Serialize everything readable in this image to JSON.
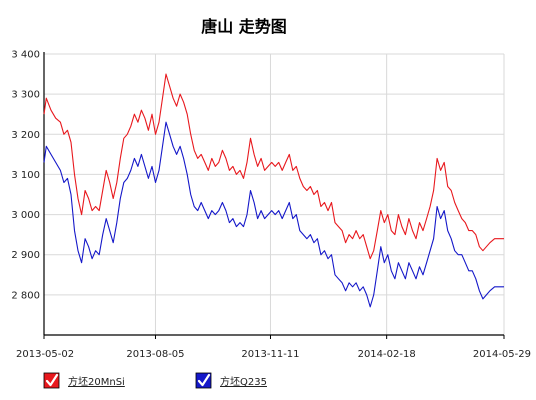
{
  "chart_data": {
    "type": "line",
    "title": "唐山 走势图",
    "xlabel": "",
    "ylabel": "",
    "ylim": [
      2700,
      3400
    ],
    "yticks": [
      2800,
      2900,
      3000,
      3100,
      3200,
      3300,
      3400
    ],
    "ytick_labels": [
      "2 800",
      "2 900",
      "3 000",
      "3 100",
      "3 200",
      "3 300",
      "3 400"
    ],
    "x_range": [
      "2013-05-02",
      "2014-05-29"
    ],
    "xticks": [
      "2013-05-02",
      "2013-08-05",
      "2013-11-11",
      "2014-02-18",
      "2014-05-29"
    ],
    "grid": true,
    "legend_position": "bottom-left",
    "series": [
      {
        "name": "方坯20MnSi",
        "color": "#e8191e",
        "points": [
          [
            "2013-05-02",
            3250
          ],
          [
            "2013-05-04",
            3290
          ],
          [
            "2013-05-08",
            3260
          ],
          [
            "2013-05-12",
            3240
          ],
          [
            "2013-05-16",
            3230
          ],
          [
            "2013-05-19",
            3200
          ],
          [
            "2013-05-22",
            3210
          ],
          [
            "2013-05-25",
            3180
          ],
          [
            "2013-05-28",
            3100
          ],
          [
            "2013-05-31",
            3040
          ],
          [
            "2013-06-03",
            3000
          ],
          [
            "2013-06-06",
            3060
          ],
          [
            "2013-06-09",
            3040
          ],
          [
            "2013-06-12",
            3010
          ],
          [
            "2013-06-15",
            3020
          ],
          [
            "2013-06-18",
            3010
          ],
          [
            "2013-06-21",
            3060
          ],
          [
            "2013-06-24",
            3110
          ],
          [
            "2013-06-27",
            3080
          ],
          [
            "2013-06-30",
            3040
          ],
          [
            "2013-07-03",
            3080
          ],
          [
            "2013-07-06",
            3140
          ],
          [
            "2013-07-09",
            3190
          ],
          [
            "2013-07-12",
            3200
          ],
          [
            "2013-07-15",
            3220
          ],
          [
            "2013-07-18",
            3250
          ],
          [
            "2013-07-21",
            3230
          ],
          [
            "2013-07-24",
            3260
          ],
          [
            "2013-07-27",
            3240
          ],
          [
            "2013-07-30",
            3210
          ],
          [
            "2013-08-02",
            3250
          ],
          [
            "2013-08-05",
            3200
          ],
          [
            "2013-08-08",
            3230
          ],
          [
            "2013-08-11",
            3290
          ],
          [
            "2013-08-14",
            3350
          ],
          [
            "2013-08-17",
            3320
          ],
          [
            "2013-08-20",
            3290
          ],
          [
            "2013-08-23",
            3270
          ],
          [
            "2013-08-26",
            3300
          ],
          [
            "2013-08-29",
            3280
          ],
          [
            "2013-09-01",
            3250
          ],
          [
            "2013-09-04",
            3200
          ],
          [
            "2013-09-07",
            3160
          ],
          [
            "2013-09-10",
            3140
          ],
          [
            "2013-09-13",
            3150
          ],
          [
            "2013-09-16",
            3130
          ],
          [
            "2013-09-19",
            3110
          ],
          [
            "2013-09-22",
            3140
          ],
          [
            "2013-09-25",
            3120
          ],
          [
            "2013-09-28",
            3130
          ],
          [
            "2013-10-01",
            3160
          ],
          [
            "2013-10-04",
            3140
          ],
          [
            "2013-10-07",
            3110
          ],
          [
            "2013-10-10",
            3120
          ],
          [
            "2013-10-13",
            3100
          ],
          [
            "2013-10-16",
            3110
          ],
          [
            "2013-10-19",
            3090
          ],
          [
            "2013-10-22",
            3130
          ],
          [
            "2013-10-25",
            3190
          ],
          [
            "2013-10-28",
            3150
          ],
          [
            "2013-10-31",
            3120
          ],
          [
            "2013-11-03",
            3140
          ],
          [
            "2013-11-06",
            3110
          ],
          [
            "2013-11-09",
            3120
          ],
          [
            "2013-11-12",
            3130
          ],
          [
            "2013-11-15",
            3120
          ],
          [
            "2013-11-18",
            3130
          ],
          [
            "2013-11-21",
            3110
          ],
          [
            "2013-11-24",
            3130
          ],
          [
            "2013-11-27",
            3150
          ],
          [
            "2013-11-30",
            3110
          ],
          [
            "2013-12-03",
            3120
          ],
          [
            "2013-12-06",
            3090
          ],
          [
            "2013-12-09",
            3070
          ],
          [
            "2013-12-12",
            3060
          ],
          [
            "2013-12-15",
            3070
          ],
          [
            "2013-12-18",
            3050
          ],
          [
            "2013-12-21",
            3060
          ],
          [
            "2013-12-24",
            3020
          ],
          [
            "2013-12-27",
            3030
          ],
          [
            "2013-12-30",
            3010
          ],
          [
            "2014-01-02",
            3030
          ],
          [
            "2014-01-05",
            2980
          ],
          [
            "2014-01-08",
            2970
          ],
          [
            "2014-01-11",
            2960
          ],
          [
            "2014-01-14",
            2930
          ],
          [
            "2014-01-17",
            2950
          ],
          [
            "2014-01-20",
            2940
          ],
          [
            "2014-01-23",
            2960
          ],
          [
            "2014-01-26",
            2940
          ],
          [
            "2014-01-29",
            2950
          ],
          [
            "2014-02-01",
            2920
          ],
          [
            "2014-02-04",
            2890
          ],
          [
            "2014-02-07",
            2910
          ],
          [
            "2014-02-10",
            2960
          ],
          [
            "2014-02-13",
            3010
          ],
          [
            "2014-02-16",
            2980
          ],
          [
            "2014-02-19",
            3000
          ],
          [
            "2014-02-22",
            2960
          ],
          [
            "2014-02-25",
            2950
          ],
          [
            "2014-02-28",
            3000
          ],
          [
            "2014-03-03",
            2970
          ],
          [
            "2014-03-06",
            2950
          ],
          [
            "2014-03-09",
            2990
          ],
          [
            "2014-03-12",
            2960
          ],
          [
            "2014-03-15",
            2940
          ],
          [
            "2014-03-18",
            2980
          ],
          [
            "2014-03-21",
            2960
          ],
          [
            "2014-03-24",
            2990
          ],
          [
            "2014-03-27",
            3020
          ],
          [
            "2014-03-30",
            3060
          ],
          [
            "2014-04-02",
            3140
          ],
          [
            "2014-04-05",
            3110
          ],
          [
            "2014-04-08",
            3130
          ],
          [
            "2014-04-11",
            3070
          ],
          [
            "2014-04-14",
            3060
          ],
          [
            "2014-04-17",
            3030
          ],
          [
            "2014-04-20",
            3010
          ],
          [
            "2014-04-23",
            2990
          ],
          [
            "2014-04-26",
            2980
          ],
          [
            "2014-04-29",
            2960
          ],
          [
            "2014-05-02",
            2960
          ],
          [
            "2014-05-05",
            2950
          ],
          [
            "2014-05-08",
            2920
          ],
          [
            "2014-05-11",
            2910
          ],
          [
            "2014-05-14",
            2920
          ],
          [
            "2014-05-17",
            2930
          ],
          [
            "2014-05-21",
            2940
          ],
          [
            "2014-05-25",
            2940
          ],
          [
            "2014-05-29",
            2940
          ]
        ]
      },
      {
        "name": "方坯Q235",
        "color": "#1518c9",
        "points": [
          [
            "2013-05-02",
            3130
          ],
          [
            "2013-05-04",
            3170
          ],
          [
            "2013-05-08",
            3150
          ],
          [
            "2013-05-12",
            3130
          ],
          [
            "2013-05-16",
            3110
          ],
          [
            "2013-05-19",
            3080
          ],
          [
            "2013-05-22",
            3090
          ],
          [
            "2013-05-25",
            3050
          ],
          [
            "2013-05-28",
            2960
          ],
          [
            "2013-05-31",
            2910
          ],
          [
            "2013-06-03",
            2880
          ],
          [
            "2013-06-06",
            2940
          ],
          [
            "2013-06-09",
            2920
          ],
          [
            "2013-06-12",
            2890
          ],
          [
            "2013-06-15",
            2910
          ],
          [
            "2013-06-18",
            2900
          ],
          [
            "2013-06-21",
            2950
          ],
          [
            "2013-06-24",
            2990
          ],
          [
            "2013-06-27",
            2960
          ],
          [
            "2013-06-30",
            2930
          ],
          [
            "2013-07-03",
            2980
          ],
          [
            "2013-07-06",
            3040
          ],
          [
            "2013-07-09",
            3080
          ],
          [
            "2013-07-12",
            3090
          ],
          [
            "2013-07-15",
            3110
          ],
          [
            "2013-07-18",
            3140
          ],
          [
            "2013-07-21",
            3120
          ],
          [
            "2013-07-24",
            3150
          ],
          [
            "2013-07-27",
            3120
          ],
          [
            "2013-07-30",
            3090
          ],
          [
            "2013-08-02",
            3120
          ],
          [
            "2013-08-05",
            3080
          ],
          [
            "2013-08-08",
            3110
          ],
          [
            "2013-08-11",
            3170
          ],
          [
            "2013-08-14",
            3230
          ],
          [
            "2013-08-17",
            3200
          ],
          [
            "2013-08-20",
            3170
          ],
          [
            "2013-08-23",
            3150
          ],
          [
            "2013-08-26",
            3170
          ],
          [
            "2013-08-29",
            3140
          ],
          [
            "2013-09-01",
            3100
          ],
          [
            "2013-09-04",
            3050
          ],
          [
            "2013-09-07",
            3020
          ],
          [
            "2013-09-10",
            3010
          ],
          [
            "2013-09-13",
            3030
          ],
          [
            "2013-09-16",
            3010
          ],
          [
            "2013-09-19",
            2990
          ],
          [
            "2013-09-22",
            3010
          ],
          [
            "2013-09-25",
            3000
          ],
          [
            "2013-09-28",
            3010
          ],
          [
            "2013-10-01",
            3030
          ],
          [
            "2013-10-04",
            3010
          ],
          [
            "2013-10-07",
            2980
          ],
          [
            "2013-10-10",
            2990
          ],
          [
            "2013-10-13",
            2970
          ],
          [
            "2013-10-16",
            2980
          ],
          [
            "2013-10-19",
            2970
          ],
          [
            "2013-10-22",
            3000
          ],
          [
            "2013-10-25",
            3060
          ],
          [
            "2013-10-28",
            3030
          ],
          [
            "2013-10-31",
            2990
          ],
          [
            "2013-11-03",
            3010
          ],
          [
            "2013-11-06",
            2990
          ],
          [
            "2013-11-09",
            3000
          ],
          [
            "2013-11-12",
            3010
          ],
          [
            "2013-11-15",
            3000
          ],
          [
            "2013-11-18",
            3010
          ],
          [
            "2013-11-21",
            2990
          ],
          [
            "2013-11-24",
            3010
          ],
          [
            "2013-11-27",
            3030
          ],
          [
            "2013-11-30",
            2990
          ],
          [
            "2013-12-03",
            3000
          ],
          [
            "2013-12-06",
            2960
          ],
          [
            "2013-12-09",
            2950
          ],
          [
            "2013-12-12",
            2940
          ],
          [
            "2013-12-15",
            2950
          ],
          [
            "2013-12-18",
            2930
          ],
          [
            "2013-12-21",
            2940
          ],
          [
            "2013-12-24",
            2900
          ],
          [
            "2013-12-27",
            2910
          ],
          [
            "2013-12-30",
            2890
          ],
          [
            "2014-01-02",
            2900
          ],
          [
            "2014-01-05",
            2850
          ],
          [
            "2014-01-08",
            2840
          ],
          [
            "2014-01-11",
            2830
          ],
          [
            "2014-01-14",
            2810
          ],
          [
            "2014-01-17",
            2830
          ],
          [
            "2014-01-20",
            2820
          ],
          [
            "2014-01-23",
            2830
          ],
          [
            "2014-01-26",
            2810
          ],
          [
            "2014-01-29",
            2820
          ],
          [
            "2014-02-01",
            2800
          ],
          [
            "2014-02-04",
            2770
          ],
          [
            "2014-02-07",
            2800
          ],
          [
            "2014-02-10",
            2860
          ],
          [
            "2014-02-13",
            2920
          ],
          [
            "2014-02-16",
            2880
          ],
          [
            "2014-02-19",
            2900
          ],
          [
            "2014-02-22",
            2860
          ],
          [
            "2014-02-25",
            2840
          ],
          [
            "2014-02-28",
            2880
          ],
          [
            "2014-03-03",
            2860
          ],
          [
            "2014-03-06",
            2840
          ],
          [
            "2014-03-09",
            2880
          ],
          [
            "2014-03-12",
            2860
          ],
          [
            "2014-03-15",
            2840
          ],
          [
            "2014-03-18",
            2870
          ],
          [
            "2014-03-21",
            2850
          ],
          [
            "2014-03-24",
            2880
          ],
          [
            "2014-03-27",
            2910
          ],
          [
            "2014-03-30",
            2940
          ],
          [
            "2014-04-02",
            3020
          ],
          [
            "2014-04-05",
            2990
          ],
          [
            "2014-04-08",
            3010
          ],
          [
            "2014-04-11",
            2960
          ],
          [
            "2014-04-14",
            2940
          ],
          [
            "2014-04-17",
            2910
          ],
          [
            "2014-04-20",
            2900
          ],
          [
            "2014-04-23",
            2900
          ],
          [
            "2014-04-26",
            2880
          ],
          [
            "2014-04-29",
            2860
          ],
          [
            "2014-05-02",
            2860
          ],
          [
            "2014-05-05",
            2840
          ],
          [
            "2014-05-08",
            2810
          ],
          [
            "2014-05-11",
            2790
          ],
          [
            "2014-05-14",
            2800
          ],
          [
            "2014-05-17",
            2810
          ],
          [
            "2014-05-21",
            2820
          ],
          [
            "2014-05-25",
            2820
          ],
          [
            "2014-05-29",
            2820
          ]
        ]
      }
    ]
  }
}
